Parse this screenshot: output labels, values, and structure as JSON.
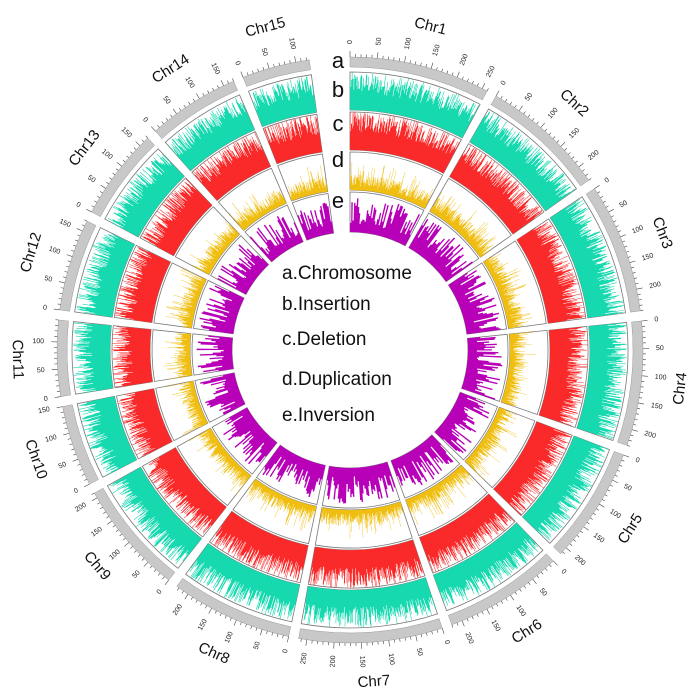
{
  "chart_data": {
    "type": "circos",
    "title": "",
    "tick_interval_major": 50,
    "tick_interval_minor": 10,
    "chromosomes": [
      {
        "name": "Chr1",
        "length": 260
      },
      {
        "name": "Chr2",
        "length": 230
      },
      {
        "name": "Chr3",
        "length": 240
      },
      {
        "name": "Chr4",
        "length": 230
      },
      {
        "name": "Chr5",
        "length": 215
      },
      {
        "name": "Chr6",
        "length": 220
      },
      {
        "name": "Chr7",
        "length": 265
      },
      {
        "name": "Chr8",
        "length": 225
      },
      {
        "name": "Chr9",
        "length": 210
      },
      {
        "name": "Chr10",
        "length": 150
      },
      {
        "name": "Chr11",
        "length": 140
      },
      {
        "name": "Chr12",
        "length": 170
      },
      {
        "name": "Chr13",
        "length": 170
      },
      {
        "name": "Chr14",
        "length": 170
      },
      {
        "name": "Chr15",
        "length": 125
      }
    ],
    "tracks": [
      {
        "letter": "a",
        "name": "Chromosome",
        "legend": "a.Chromosome",
        "color": "#c8c8c8",
        "type": "ideogram"
      },
      {
        "letter": "b",
        "name": "Insertion",
        "legend": "b.Insertion",
        "color": "#16d9b0",
        "type": "histogram",
        "mean": 0.72
      },
      {
        "letter": "c",
        "name": "Deletion",
        "legend": "c.Deletion",
        "color": "#fb2a2a",
        "type": "histogram",
        "mean": 0.75
      },
      {
        "letter": "d",
        "name": "Duplication",
        "legend": "d.Duplication",
        "color": "#f0be10",
        "type": "histogram",
        "mean": 0.3
      },
      {
        "letter": "e",
        "name": "Inversion",
        "legend": "e.Inversion",
        "color": "#b800b8",
        "type": "histogram",
        "mean": 0.55
      }
    ]
  }
}
